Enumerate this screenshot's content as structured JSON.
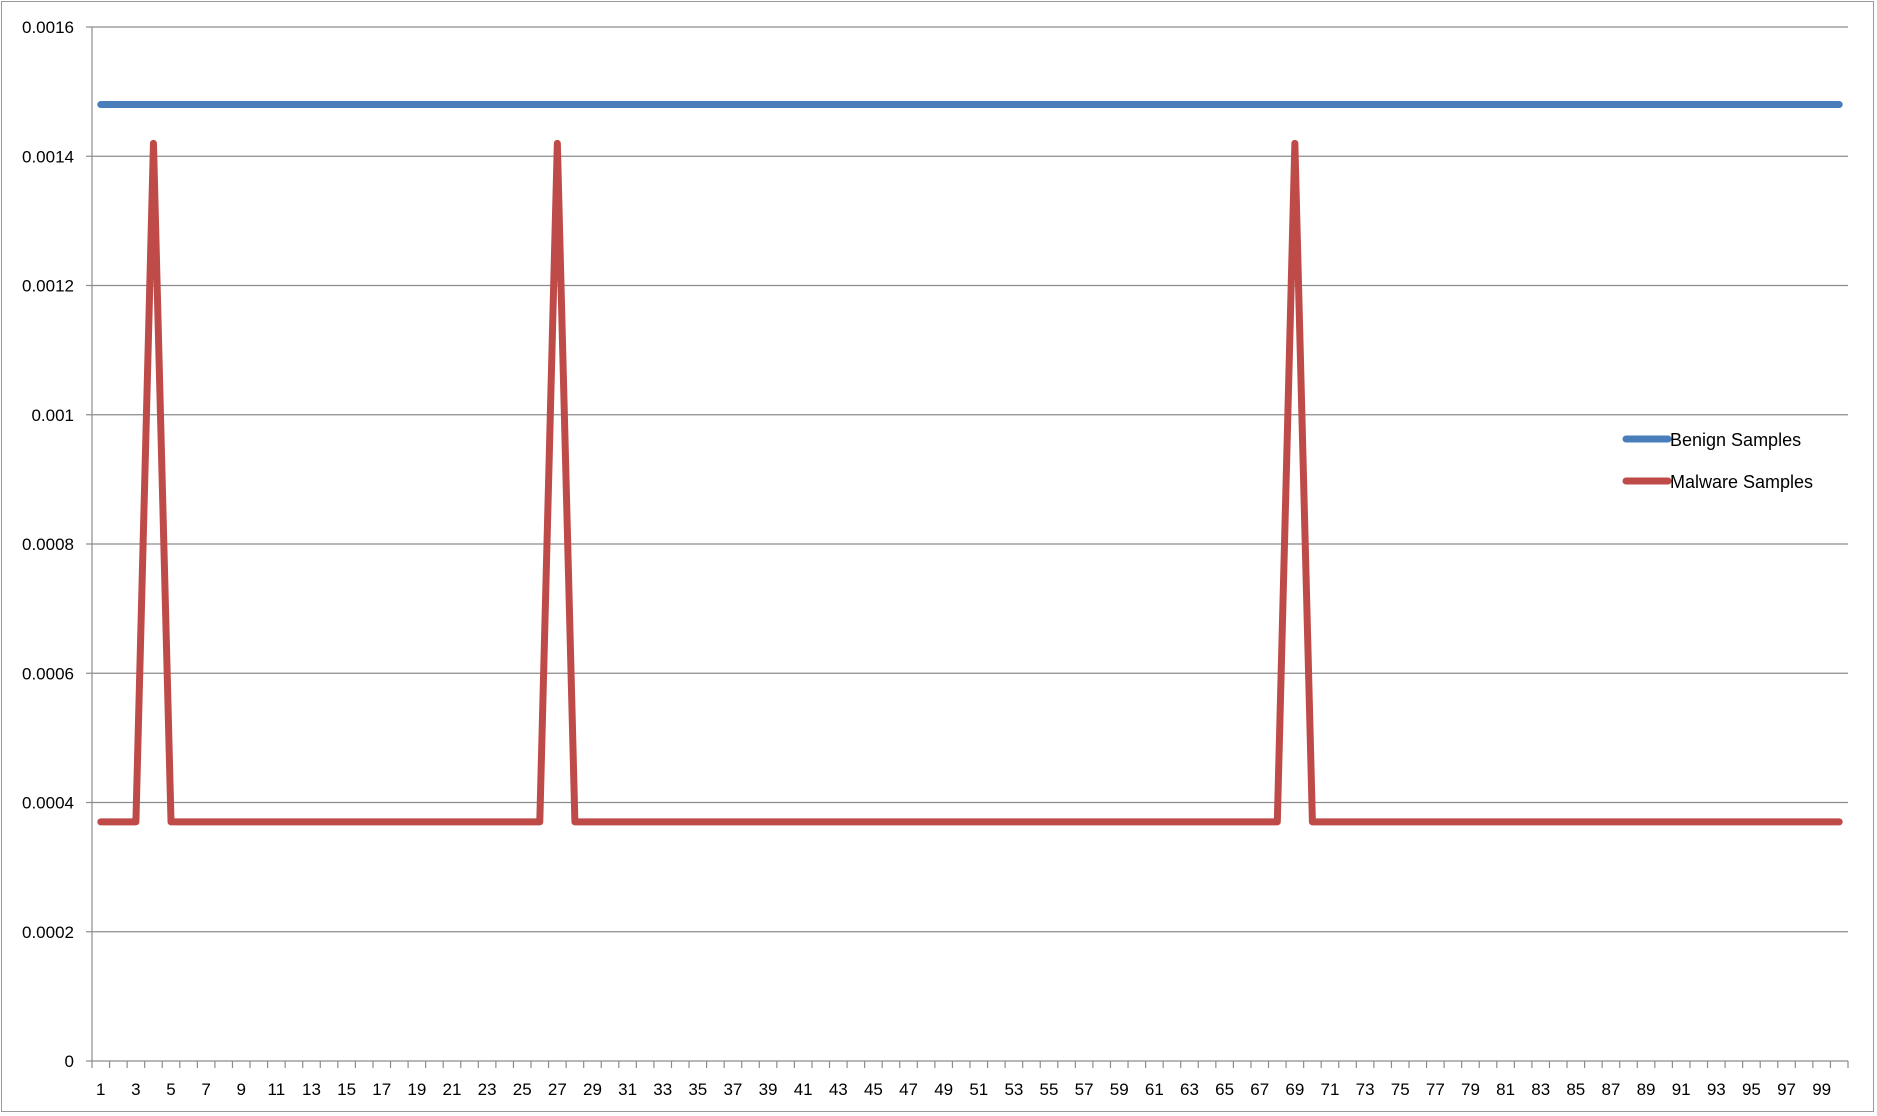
{
  "chart_data": {
    "type": "line",
    "title": "",
    "xlabel": "",
    "ylabel": "",
    "x_start": 1,
    "x_end": 100,
    "x_tick_labels": [
      "1",
      "3",
      "5",
      "7",
      "9",
      "11",
      "13",
      "15",
      "17",
      "19",
      "21",
      "23",
      "25",
      "27",
      "29",
      "31",
      "33",
      "35",
      "37",
      "39",
      "41",
      "43",
      "45",
      "47",
      "49",
      "51",
      "53",
      "55",
      "57",
      "59",
      "61",
      "63",
      "65",
      "67",
      "69",
      "71",
      "73",
      "75",
      "77",
      "79",
      "81",
      "83",
      "85",
      "87",
      "89",
      "91",
      "93",
      "95",
      "97",
      "99"
    ],
    "y_tick_labels": [
      "0",
      "0.0002",
      "0.0004",
      "0.0006",
      "0.0008",
      "0.001",
      "0.0012",
      "0.0014",
      "0.0016"
    ],
    "ylim": [
      0,
      0.0016
    ],
    "grid": true,
    "legend_position": "right",
    "series": [
      {
        "name": "Benign Samples",
        "color": "#4a7ebb",
        "constant_value": 0.00148,
        "peaks": []
      },
      {
        "name": "Malware Samples",
        "color": "#be4b48",
        "constant_value": 0.00037,
        "peaks": [
          {
            "x": 4,
            "y": 0.00142
          },
          {
            "x": 27,
            "y": 0.00142
          },
          {
            "x": 69,
            "y": 0.00142
          }
        ]
      }
    ]
  }
}
